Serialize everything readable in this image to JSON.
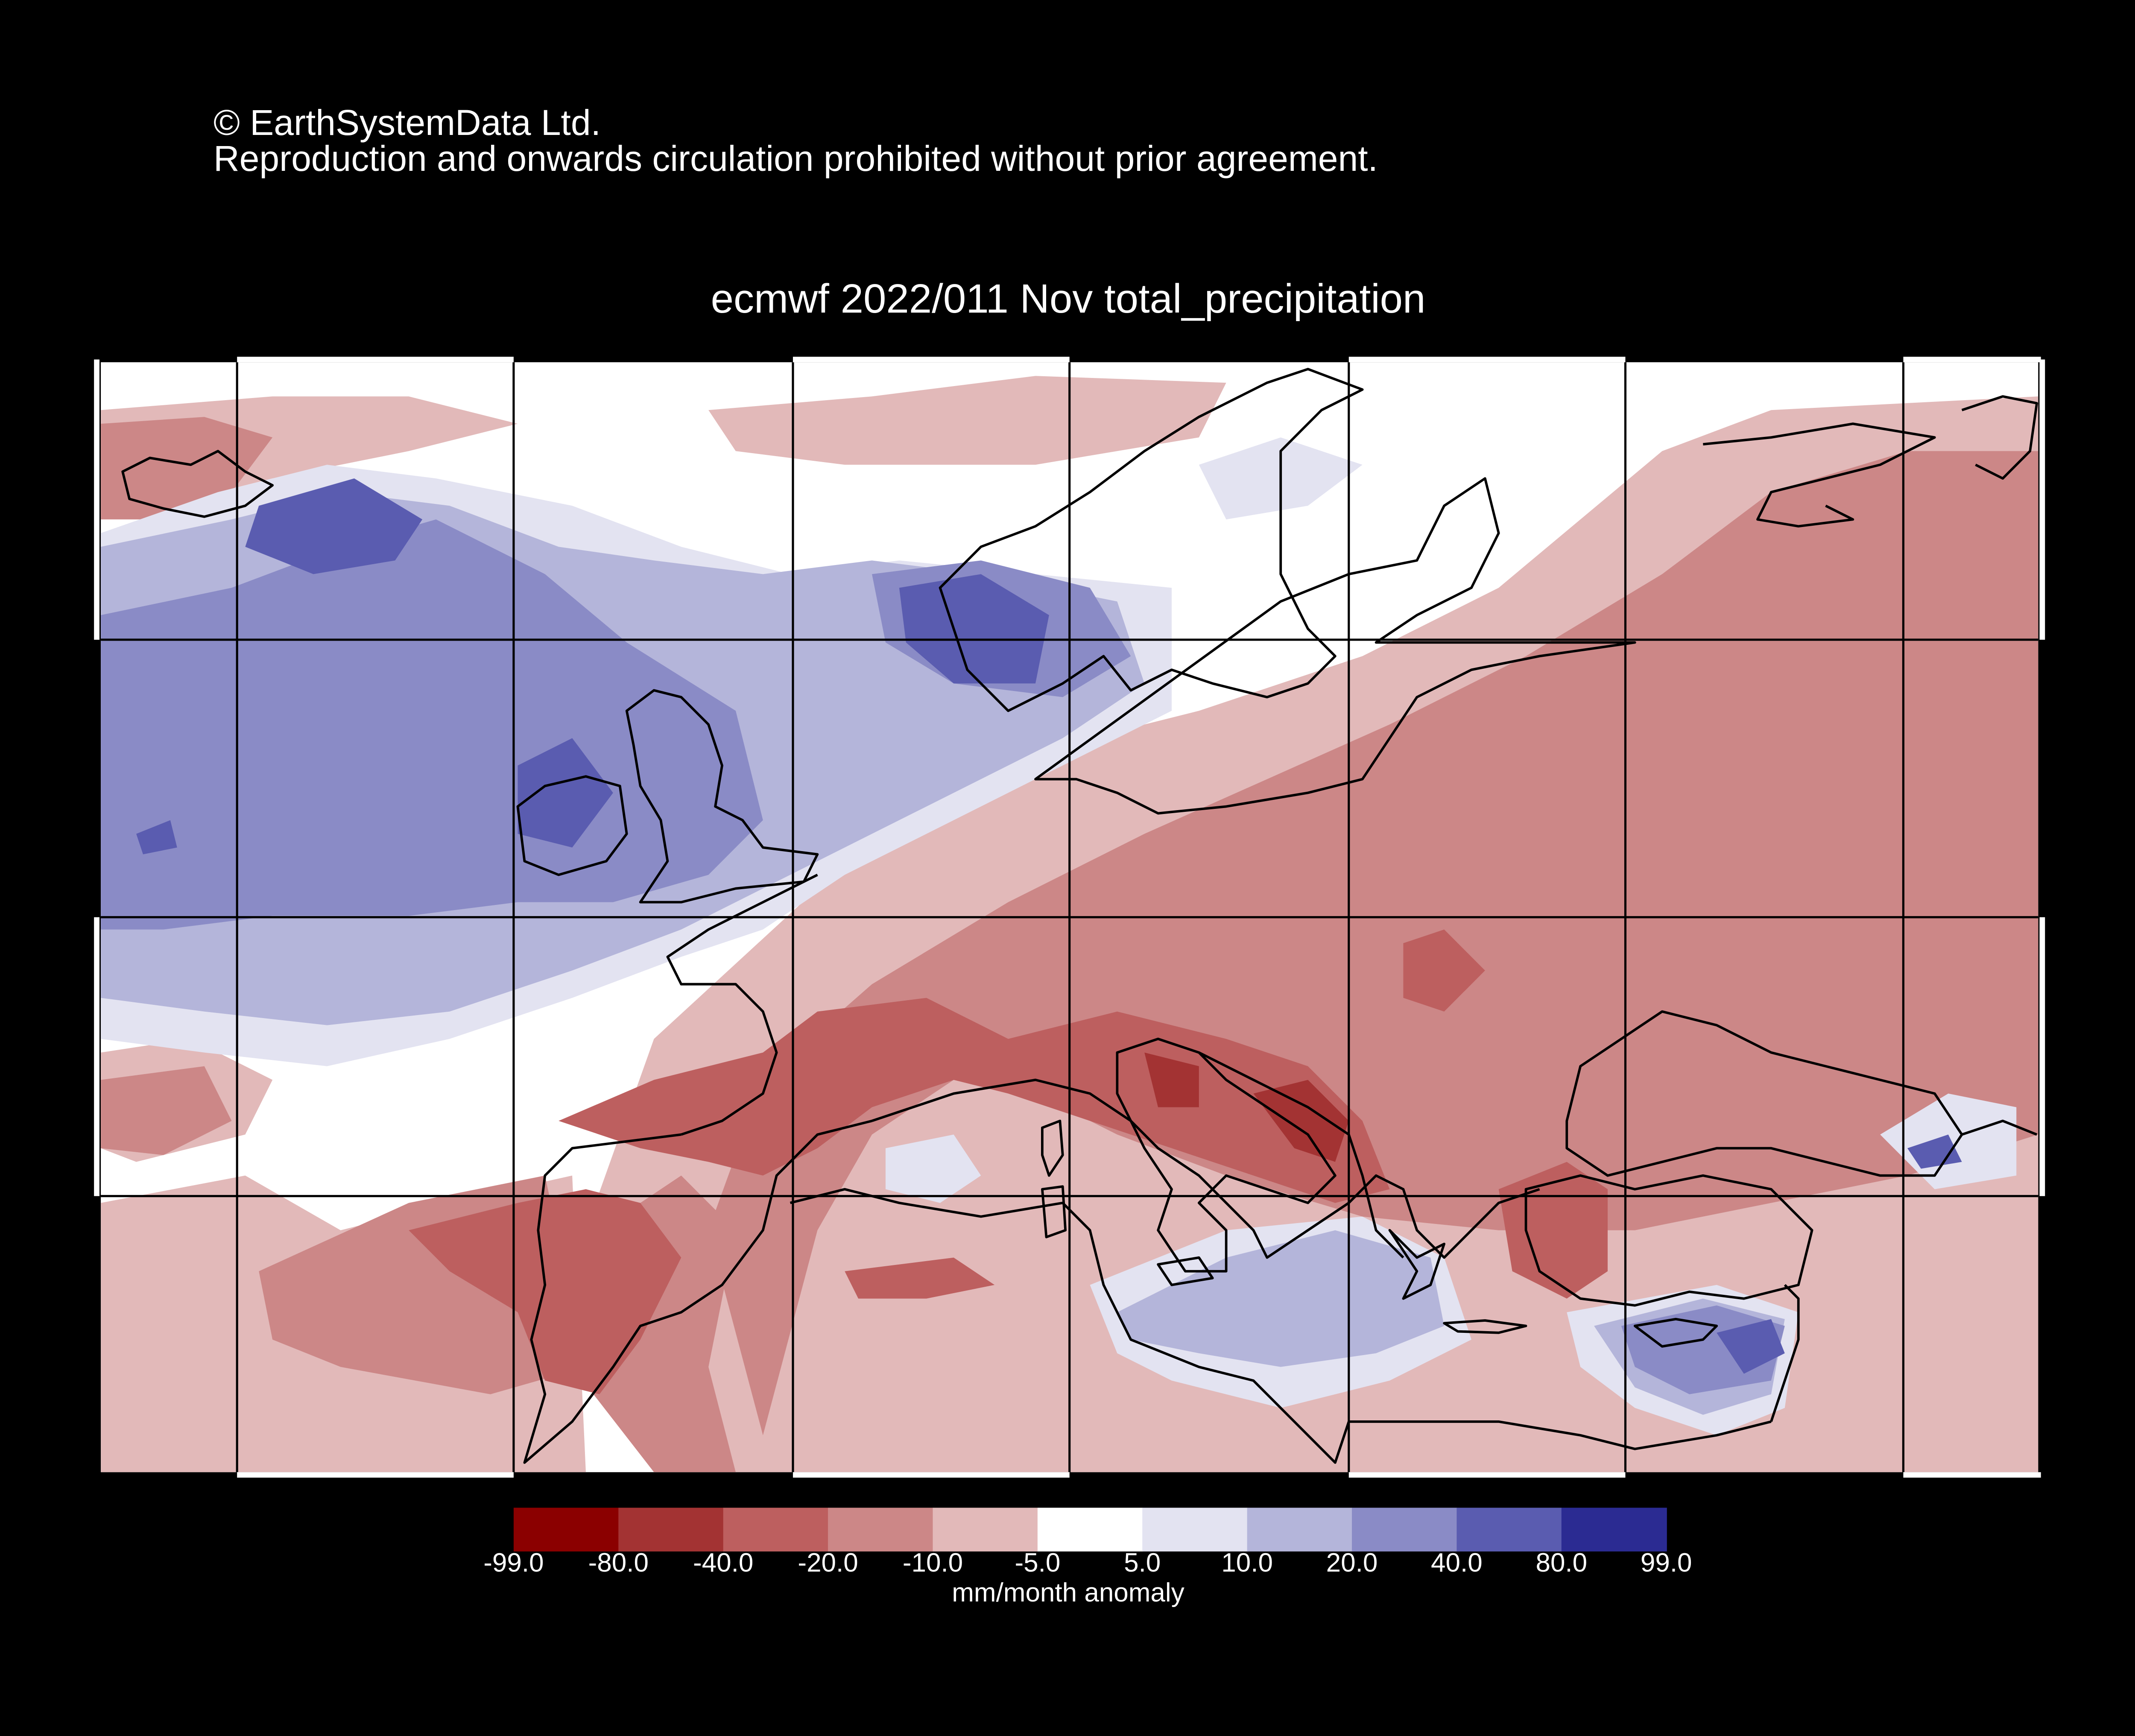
{
  "header": {
    "copyright_line1": "© EarthSystemData Ltd.",
    "copyright_line2": "Reproduction and onwards circulation prohibited without prior agreement."
  },
  "map": {
    "title": "ecmwf 2022/011 Nov total_precipitation",
    "region": "Europe",
    "variable": "total_precipitation",
    "month": "Nov",
    "background": "#000000",
    "coastline_color": "#000000",
    "gridline_color": "#000000",
    "patterns": {
      "north_atlantic_ireland_uk_north_sea_norway": "wet",
      "eastern_europe_mediterranean_iberia": "dry",
      "libya_levant_cyprus": "wet"
    }
  },
  "colorbar": {
    "units": "mm/month anomaly",
    "tick_labels": [
      "-99.0",
      "-80.0",
      "-40.0",
      "-20.0",
      "-10.0",
      "-5.0",
      "5.0",
      "10.0",
      "20.0",
      "40.0",
      "80.0",
      "99.0"
    ],
    "colors": [
      "#8b0000",
      "#a33333",
      "#bd5f5f",
      "#cc8787",
      "#e2b9b9",
      "#ffffff",
      "#e3e3f1",
      "#b4b5da",
      "#8a8bc6",
      "#5a5cb0",
      "#2b2b92"
    ]
  }
}
